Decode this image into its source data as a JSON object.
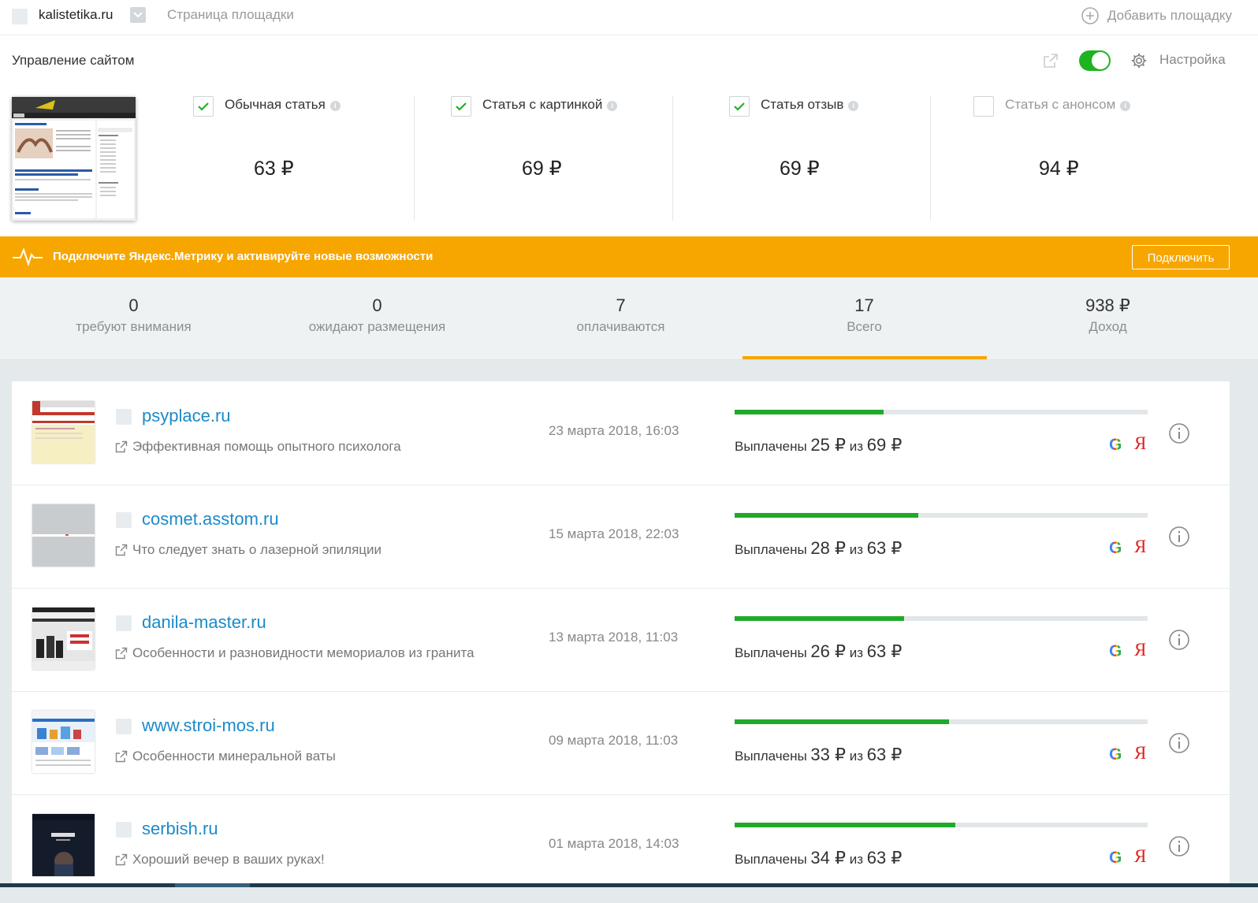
{
  "topbar": {
    "site_name": "kalistetika.ru",
    "page_link": "Страница площадки",
    "add_site": "Добавить площадку"
  },
  "manage": {
    "title": "Управление сайтом",
    "settings_label": "Настройка",
    "toggle_on": true
  },
  "price_options": [
    {
      "label": "Обычная статья",
      "price": "63 ₽",
      "checked": true
    },
    {
      "label": "Статья с картинкой",
      "price": "69 ₽",
      "checked": true
    },
    {
      "label": "Статья отзыв",
      "price": "69 ₽",
      "checked": true
    },
    {
      "label": "Статья с анонсом",
      "price": "94 ₽",
      "checked": false
    }
  ],
  "banner": {
    "text": "Подключите Яндекс.Метрику и активируйте новые возможности",
    "button": "Подключить",
    "color": "#f7a600"
  },
  "stats": [
    {
      "value": "0",
      "label": "требуют внимания"
    },
    {
      "value": "0",
      "label": "ожидают размещения"
    },
    {
      "value": "7",
      "label": "оплачиваются"
    },
    {
      "value": "17",
      "label": "Всего"
    },
    {
      "value": "938 ₽",
      "label": "Доход"
    }
  ],
  "orders": [
    {
      "site": "psyplace.ru",
      "title": "Эффективная помощь опытного психолога",
      "date": "23 марта 2018, 16:03",
      "paid_label": "Выплачены",
      "paid": "25 ₽",
      "of_label": "из",
      "total": "69 ₽",
      "progress": 0.36
    },
    {
      "site": "cosmet.asstom.ru",
      "title": "Что следует знать о лазерной эпиляции",
      "date": "15 марта 2018, 22:03",
      "paid_label": "Выплачены",
      "paid": "28 ₽",
      "of_label": "из",
      "total": "63 ₽",
      "progress": 0.445
    },
    {
      "site": "danila-master.ru",
      "title": "Особенности и разновидности мемориалов из гранита",
      "date": "13 марта 2018, 11:03",
      "paid_label": "Выплачены",
      "paid": "26 ₽",
      "of_label": "из",
      "total": "63 ₽",
      "progress": 0.41
    },
    {
      "site": "www.stroi-mos.ru",
      "title": "Особенности минеральной ваты",
      "date": "09 марта 2018, 11:03",
      "paid_label": "Выплачены",
      "paid": "33 ₽",
      "of_label": "из",
      "total": "63 ₽",
      "progress": 0.52
    },
    {
      "site": "serbish.ru",
      "title": "Хороший вечер в ваших руках!",
      "date": "01 марта 2018, 14:03",
      "paid_label": "Выплачены",
      "paid": "34 ₽",
      "of_label": "из",
      "total": "63 ₽",
      "progress": 0.535
    }
  ],
  "engine_icons": [
    "google-icon",
    "yandex-icon"
  ],
  "engine_glyphs": {
    "google": "G",
    "yandex": "Я"
  },
  "colors": {
    "accent": "#1db321",
    "link": "#1c8ac9",
    "progress": "#21a92a",
    "banner": "#f7a600"
  }
}
